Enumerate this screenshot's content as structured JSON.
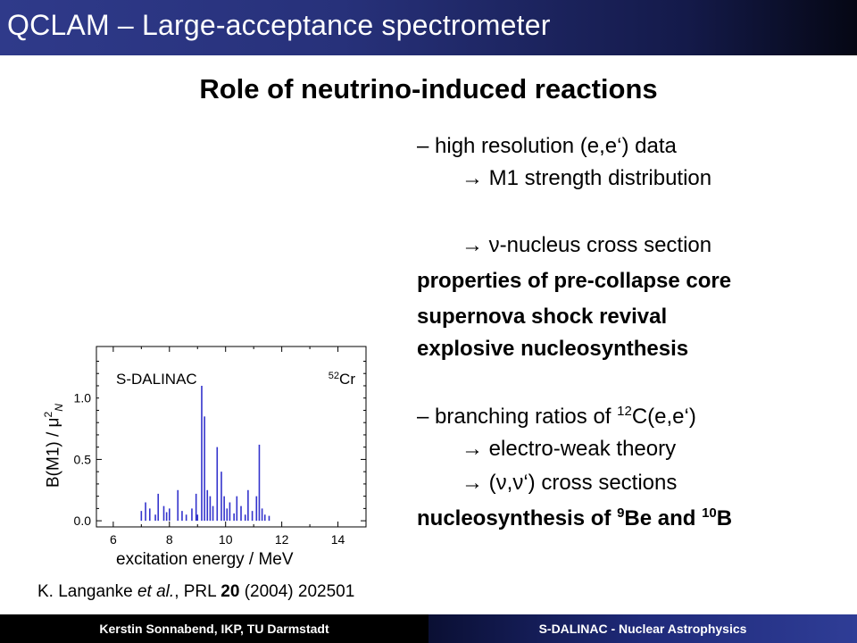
{
  "header": {
    "title": "QCLAM – Large-acceptance spectrometer"
  },
  "subtitle": "Role of neutrino-induced reactions",
  "bullets": {
    "l1": "– high resolution (e,e‘) data",
    "l2_arrow": "→",
    "l2": "M1 strength distribution",
    "l3_arrow": "→",
    "l3_nu": "ν",
    "l3": "-nucleus cross section",
    "l4": "properties of pre-collapse core",
    "l5": "supernova shock revival",
    "l6": "explosive nucleosynthesis",
    "l7a": "– branching ratios of",
    "l7_sup": "12",
    "l7b": "C(e,e‘)",
    "l8_arrow": "→",
    "l8": "electro-weak theory",
    "l9_arrow": "→",
    "l9a": "(ν,ν‘)",
    "l9b": "cross sections",
    "l10a": "nucleosynthesis of",
    "l10_sup1": "9",
    "l10b": "Be and",
    "l10_sup2": "10",
    "l10c": "B"
  },
  "citation": {
    "pre": "K. Langanke ",
    "etal": "et al.",
    "mid": ", PRL ",
    "vol": "20",
    "post": " (2004) 202501"
  },
  "footer": {
    "left": "Kerstin Sonnabend, IKP, TU Darmstadt",
    "right": "S-DALINAC - Nuclear Astrophysics"
  },
  "chart_data": {
    "type": "bar",
    "xlabel": "excitation energy / MeV",
    "ylabel_main": "B(M1) / μ",
    "ylabel_sup": "2",
    "ylabel_sub": "N",
    "annotation_left": "S-DALINAC",
    "annotation_right_sup": "52",
    "annotation_right": "Cr",
    "xlim": [
      5.4,
      15.0
    ],
    "ylim": [
      -0.05,
      1.42
    ],
    "xticks": [
      6,
      8,
      10,
      12,
      14
    ],
    "yticks": [
      0.0,
      0.5,
      1.0
    ],
    "ytick_labels": [
      "0.0",
      "0.5",
      "1.0"
    ],
    "bar_color": "#3333cc",
    "x": [
      7.0,
      7.15,
      7.3,
      7.5,
      7.6,
      7.8,
      7.9,
      8.0,
      8.3,
      8.45,
      8.6,
      8.8,
      8.95,
      9.0,
      9.15,
      9.25,
      9.35,
      9.45,
      9.55,
      9.7,
      9.85,
      9.95,
      10.05,
      10.15,
      10.3,
      10.4,
      10.55,
      10.7,
      10.8,
      10.95,
      11.1,
      11.2,
      11.3,
      11.4,
      11.55
    ],
    "values": [
      0.08,
      0.15,
      0.1,
      0.05,
      0.22,
      0.12,
      0.07,
      0.1,
      0.25,
      0.08,
      0.05,
      0.1,
      0.22,
      0.05,
      1.1,
      0.85,
      0.25,
      0.2,
      0.12,
      0.6,
      0.4,
      0.2,
      0.1,
      0.15,
      0.06,
      0.2,
      0.12,
      0.05,
      0.25,
      0.08,
      0.2,
      0.62,
      0.1,
      0.05,
      0.04
    ]
  }
}
